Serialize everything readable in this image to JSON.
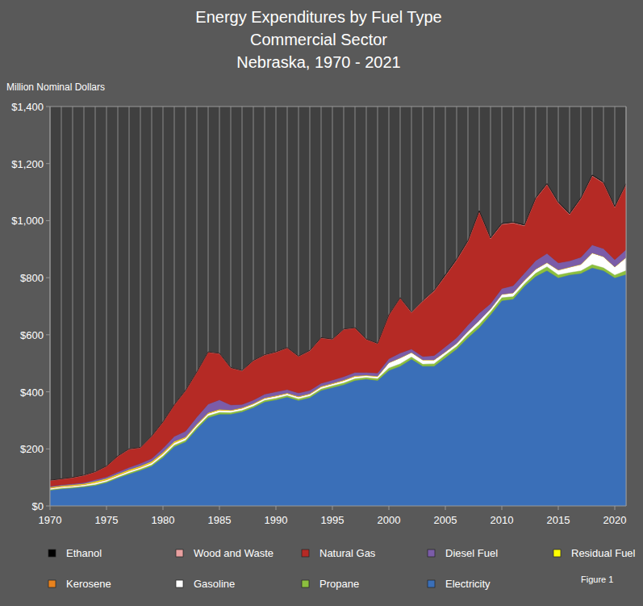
{
  "chart_data": {
    "type": "area",
    "stacked": true,
    "grid": true,
    "title": [
      "Energy Expenditures by Fuel Type",
      "Commercial Sector",
      "Nebraska, 1970 - 2021"
    ],
    "y_label": "Million Nominal Dollars",
    "annotation": "Figure 1",
    "legend": "bottom",
    "x": [
      1970,
      1971,
      1972,
      1973,
      1974,
      1975,
      1976,
      1977,
      1978,
      1979,
      1980,
      1981,
      1982,
      1983,
      1984,
      1985,
      1986,
      1987,
      1988,
      1989,
      1990,
      1991,
      1992,
      1993,
      1994,
      1995,
      1996,
      1997,
      1998,
      1999,
      2000,
      2001,
      2002,
      2003,
      2004,
      2005,
      2006,
      2007,
      2008,
      2009,
      2010,
      2011,
      2012,
      2013,
      2014,
      2015,
      2016,
      2017,
      2018,
      2019,
      2020,
      2021
    ],
    "xlim": [
      1970,
      2021
    ],
    "xticks": [
      1970,
      1975,
      1980,
      1985,
      1990,
      1995,
      2000,
      2005,
      2010,
      2015,
      2020
    ],
    "ylim": [
      0,
      1400
    ],
    "yticks": [
      {
        "value": 0,
        "label": "$0"
      },
      {
        "value": 200,
        "label": "$200"
      },
      {
        "value": 400,
        "label": "$400"
      },
      {
        "value": 600,
        "label": "$600"
      },
      {
        "value": 800,
        "label": "$800"
      },
      {
        "value": 1000,
        "label": "$1,000"
      },
      {
        "value": 1200,
        "label": "$1,200"
      },
      {
        "value": 1400,
        "label": "$1,400"
      }
    ],
    "series": [
      {
        "name": "Electricity",
        "color": "#3a6fb8",
        "values": [
          55,
          60,
          63,
          67,
          72,
          82,
          98,
          112,
          125,
          140,
          170,
          208,
          225,
          270,
          310,
          322,
          322,
          330,
          345,
          365,
          372,
          382,
          370,
          380,
          405,
          415,
          425,
          440,
          445,
          440,
          475,
          490,
          515,
          490,
          490,
          520,
          550,
          590,
          625,
          670,
          720,
          725,
          770,
          805,
          825,
          800,
          810,
          815,
          835,
          825,
          800,
          812
        ]
      },
      {
        "name": "Propane",
        "color": "#8cbf3f",
        "values": [
          3,
          3,
          3,
          3,
          4,
          4,
          4,
          5,
          5,
          5,
          6,
          6,
          6,
          7,
          7,
          7,
          6,
          6,
          6,
          6,
          6,
          6,
          6,
          6,
          6,
          7,
          7,
          7,
          6,
          7,
          9,
          9,
          8,
          8,
          9,
          10,
          10,
          11,
          12,
          11,
          11,
          10,
          9,
          12,
          14,
          11,
          9,
          10,
          12,
          11,
          10,
          14
        ]
      },
      {
        "name": "Gasoline",
        "color": "#ffffff",
        "values": [
          4,
          4,
          4,
          4,
          5,
          5,
          5,
          5,
          5,
          6,
          7,
          7,
          7,
          7,
          7,
          7,
          6,
          6,
          6,
          6,
          7,
          6,
          6,
          6,
          6,
          6,
          7,
          7,
          6,
          7,
          18,
          20,
          15,
          14,
          13,
          10,
          10,
          11,
          13,
          10,
          11,
          12,
          12,
          13,
          14,
          16,
          18,
          22,
          40,
          38,
          28,
          45
        ]
      },
      {
        "name": "Kerosene",
        "color": "#e8821e",
        "values": [
          2,
          2,
          2,
          2,
          2,
          2,
          2,
          2,
          2,
          2,
          2,
          2,
          2,
          1,
          1,
          1,
          1,
          1,
          1,
          1,
          1,
          1,
          1,
          1,
          1,
          1,
          1,
          1,
          0,
          0,
          0,
          0,
          0,
          0,
          0,
          0,
          0,
          0,
          0,
          0,
          0,
          0,
          0,
          0,
          0,
          0,
          0,
          0,
          0,
          0,
          0,
          0
        ]
      },
      {
        "name": "Residual Fuel",
        "color": "#ffff00",
        "values": [
          2,
          2,
          2,
          2,
          3,
          3,
          3,
          3,
          3,
          3,
          3,
          3,
          2,
          2,
          2,
          2,
          1,
          1,
          1,
          1,
          1,
          1,
          1,
          1,
          1,
          1,
          1,
          1,
          1,
          1,
          0,
          0,
          0,
          0,
          0,
          0,
          0,
          0,
          0,
          0,
          0,
          0,
          0,
          0,
          0,
          0,
          0,
          0,
          0,
          0,
          0,
          0
        ]
      },
      {
        "name": "Diesel Fuel",
        "color": "#7b5ca8",
        "values": [
          3,
          3,
          4,
          4,
          6,
          6,
          7,
          8,
          9,
          10,
          14,
          18,
          20,
          25,
          30,
          33,
          18,
          12,
          12,
          13,
          13,
          12,
          12,
          11,
          11,
          11,
          12,
          12,
          10,
          11,
          14,
          17,
          12,
          12,
          15,
          18,
          20,
          22,
          26,
          18,
          20,
          25,
          25,
          30,
          32,
          25,
          22,
          25,
          28,
          28,
          25,
          28
        ]
      },
      {
        "name": "Natural Gas",
        "color": "#b52a25",
        "values": [
          20,
          20,
          21,
          25,
          27,
          37,
          55,
          64,
          55,
          78,
          92,
          110,
          142,
          157,
          182,
          162,
          130,
          118,
          138,
          137,
          139,
          146,
          128,
          139,
          159,
          143,
          166,
          156,
          116,
          103,
          153,
          193,
          128,
          194,
          226,
          249,
          272,
          293,
          356,
          228,
          225,
          220,
          166,
          217,
          242,
          210,
          163,
          205,
          242,
          230,
          184,
          228
        ]
      },
      {
        "name": "Wood and Waste",
        "color": "#e8a0a0",
        "values": [
          1,
          1,
          1,
          1,
          1,
          1,
          1,
          1,
          1,
          1,
          1,
          1,
          1,
          1,
          1,
          1,
          1,
          1,
          1,
          1,
          1,
          1,
          1,
          1,
          1,
          1,
          1,
          1,
          1,
          1,
          1,
          1,
          2,
          2,
          2,
          2,
          2,
          2,
          2,
          2,
          2,
          2,
          2,
          2,
          2,
          2,
          2,
          2,
          2,
          2,
          2,
          2
        ]
      },
      {
        "name": "Ethanol",
        "color": "#000000",
        "values": [
          0,
          0,
          0,
          0,
          0,
          0,
          0,
          0,
          0,
          0,
          0,
          0,
          0,
          0,
          0,
          0,
          0,
          0,
          0,
          0,
          0,
          0,
          0,
          0,
          0,
          0,
          0,
          0,
          0,
          0,
          0,
          0,
          0,
          0,
          0,
          1,
          1,
          1,
          1,
          1,
          1,
          1,
          1,
          1,
          1,
          1,
          1,
          1,
          1,
          1,
          1,
          1
        ]
      }
    ]
  }
}
